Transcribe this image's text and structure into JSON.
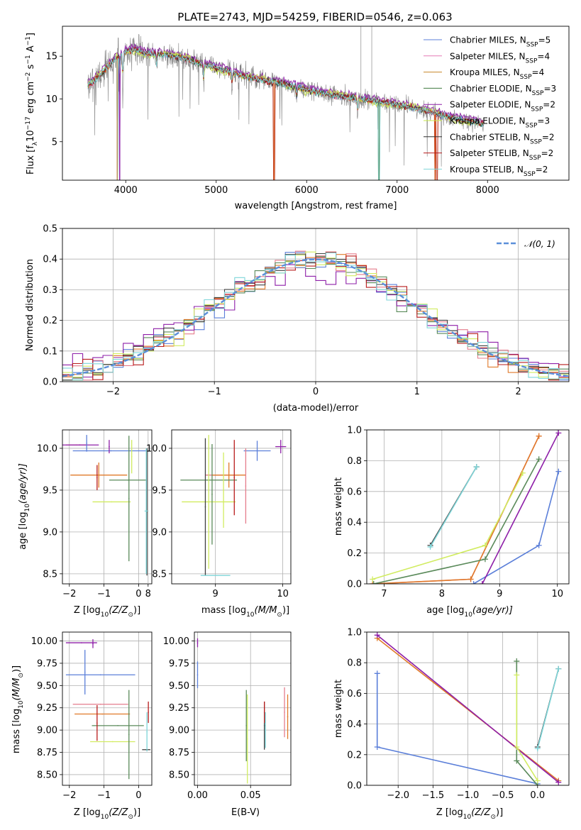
{
  "title": "PLATE=2743, MJD=54259, FIBERID=0546, z=0.063",
  "series_names": [
    "Chabrier MILES, N_SSP=5",
    "Salpeter MILES, N_SSP=4",
    "Kroupa MILES, N_SSP=4",
    "Chabrier ELODIE, N_SSP=3",
    "Salpeter ELODIE, N_SSP=2",
    "Kroupa ELODIE, N_SSP=3",
    "Chabrier STELIB, N_SSP=2",
    "Salpeter STELIB, N_SSP=2",
    "Kroupa STELIB, N_SSP=2"
  ],
  "legend_labels": [
    {
      "base": "Chabrier MILES, N",
      "sub": "SSP",
      "tail": "=5"
    },
    {
      "base": "Salpeter MILES, N",
      "sub": "SSP",
      "tail": "=4"
    },
    {
      "base": "Kroupa MILES, N",
      "sub": "SSP",
      "tail": "=4"
    },
    {
      "base": "Chabrier ELODIE, N",
      "sub": "SSP",
      "tail": "=3"
    },
    {
      "base": "Salpeter ELODIE, N",
      "sub": "SSP",
      "tail": "=2"
    },
    {
      "base": "Kroupa ELODIE, N",
      "sub": "SSP",
      "tail": "=3"
    },
    {
      "base": "Chabrier STELIB, N",
      "sub": "SSP",
      "tail": "=2"
    },
    {
      "base": "Salpeter STELIB, N",
      "sub": "SSP",
      "tail": "=2"
    },
    {
      "base": "Kroupa STELIB, N",
      "sub": "SSP",
      "tail": "=2"
    }
  ],
  "colors": [
    "#5b7fd9",
    "#e67ab5",
    "#c8872a",
    "#3f7a3f",
    "#8e1fa8",
    "#c9e84a",
    "#303030",
    "#b81c1c",
    "#7fd6d9"
  ],
  "colors_b": [
    "#5b7fd9",
    "#e57c8c",
    "#e07a2a",
    "#5a8a5a",
    "#8e1fa8",
    "#d1ec60",
    "#404040",
    "#b81c1c",
    "#7fd6d9"
  ],
  "chart_data": [
    {
      "id": "spectrum",
      "type": "line",
      "xlabel": "wavelength [Angstrom, rest frame]",
      "ylabel": {
        "a": "Flux [f",
        "b": "λ",
        "c": "10",
        "d": "−17",
        "e": " erg cm",
        "f": "−2",
        "g": " s",
        "h": "−1",
        "i": " A",
        "j": "−1",
        "k": "]"
      },
      "xlim": [
        3300,
        8900
      ],
      "ylim": [
        0.5,
        18.5
      ],
      "xticks": [
        4000,
        5000,
        6000,
        7000,
        8000
      ],
      "yticks": [
        5,
        10,
        15
      ],
      "continuum": [
        [
          3580,
          11.5
        ],
        [
          3700,
          12.6
        ],
        [
          3800,
          13.8
        ],
        [
          3900,
          14.8
        ],
        [
          4000,
          15.5
        ],
        [
          4100,
          15.8
        ],
        [
          4200,
          15.4
        ],
        [
          4400,
          15.2
        ],
        [
          4600,
          14.9
        ],
        [
          4800,
          14.2
        ],
        [
          5000,
          13.6
        ],
        [
          5200,
          13.0
        ],
        [
          5400,
          12.4
        ],
        [
          5600,
          12.0
        ],
        [
          5800,
          11.6
        ],
        [
          6000,
          11.1
        ],
        [
          6200,
          10.6
        ],
        [
          6400,
          10.3
        ],
        [
          6600,
          10.0
        ],
        [
          6800,
          9.7
        ],
        [
          7000,
          9.3
        ],
        [
          7200,
          8.9
        ],
        [
          7400,
          8.4
        ],
        [
          7600,
          7.8
        ],
        [
          7800,
          7.4
        ],
        [
          7960,
          7.0
        ]
      ],
      "dips": [
        [
          3934,
          3.6
        ],
        [
          3968,
          4.2
        ],
        [
          4340,
          2.0
        ],
        [
          4861,
          2.5
        ],
        [
          5175,
          1.8
        ],
        [
          5890,
          1.6
        ],
        [
          6563,
          2.0
        ]
      ],
      "model_drops": [
        [
          3905,
          3
        ],
        [
          3935,
          4
        ],
        [
          5640,
          2
        ],
        [
          6800,
          3
        ],
        [
          7420,
          2
        ],
        [
          7440,
          2
        ]
      ],
      "spikes": [
        [
          6720,
          18.5
        ],
        [
          6600,
          17.8
        ]
      ]
    },
    {
      "id": "residuals",
      "type": "step_histogram",
      "xlabel": "(data-model)/error",
      "ylabel": "Normed distribution",
      "xlim": [
        -2.5,
        2.5
      ],
      "ylim": [
        0,
        0.5
      ],
      "xticks": [
        -2,
        -1,
        0,
        1,
        2
      ],
      "yticks": [
        0.0,
        0.1,
        0.2,
        0.3,
        0.4,
        0.5
      ],
      "bin_width": 0.1,
      "legend": {
        "label": "𝒩(0, 1)",
        "placement": "top-right"
      },
      "normal_curve": {
        "mu": 0,
        "sigma": 1
      }
    },
    {
      "id": "age_vs_Z",
      "type": "errorbar",
      "xlabel": {
        "a": "Z [log",
        "b": "10",
        "c": "(Z/Z",
        "d": "⊙",
        "e": ")]"
      },
      "ylabel": {
        "a": "age  [log",
        "b": "10",
        "c": "(age/yr)]"
      },
      "xlim": [
        -2.2,
        0.38
      ],
      "ylim": [
        8.38,
        10.22
      ],
      "xticks": [
        -2,
        -1,
        0
      ],
      "yticks": [
        8.5,
        9.0,
        9.5,
        10.0
      ],
      "points": [
        {
          "s": 0,
          "x": -0.8,
          "y": 9.97,
          "xe": 1.1,
          "ye": 0.0
        },
        {
          "s": 1,
          "x": -1.8,
          "y": 10.04,
          "xe": 0.3,
          "ye": 0.0
        },
        {
          "s": 2,
          "x": -1.15,
          "y": 9.68,
          "xe": 0.82,
          "ye": 0.15
        },
        {
          "s": 3,
          "x": -0.3,
          "y": 9.62,
          "xe": 0.55,
          "ye": 0.0
        },
        {
          "s": 4,
          "x": -1.7,
          "y": 10.04,
          "xe": 0.55,
          "ye": 0.0
        },
        {
          "s": 5,
          "x": -0.78,
          "y": 9.36,
          "xe": 0.55,
          "ye": 0.0
        },
        {
          "s": 6,
          "x": 0.24,
          "y": 9.24,
          "xe": 0.0,
          "ye": 0.76
        },
        {
          "s": 7,
          "x": -1.2,
          "y": 9.65,
          "xe": 0.0,
          "ye": 0.15
        },
        {
          "s": 8,
          "x": 0.22,
          "y": 9.25,
          "xe": 0.05,
          "ye": 0.75
        },
        {
          "s": 3,
          "x": -0.28,
          "y": 9.4,
          "xe": 0.0,
          "ye": 0.75
        },
        {
          "s": 0,
          "x": -1.5,
          "y": 10.06,
          "xe": 0.0,
          "ye": 0.1
        },
        {
          "s": 5,
          "x": -0.2,
          "y": 9.9,
          "xe": 0.0,
          "ye": 0.2
        },
        {
          "s": 4,
          "x": -0.85,
          "y": 10.02,
          "xe": 0.0,
          "ye": 0.08
        }
      ]
    },
    {
      "id": "age_vs_mass",
      "type": "errorbar",
      "xlabel": {
        "a": "mass [log",
        "b": "10",
        "c": "(M/M",
        "d": "⊙",
        "e": ")]"
      },
      "ylabel": "",
      "xlim": [
        8.35,
        10.12
      ],
      "ylim": [
        8.38,
        10.22
      ],
      "xticks": [
        8,
        9,
        10
      ],
      "yticks": [
        8.5,
        9.0,
        9.5,
        10.0
      ],
      "points": [
        {
          "s": 0,
          "x": 9.62,
          "y": 9.97,
          "xe": 0.2,
          "ye": 0.12
        },
        {
          "s": 1,
          "x": 9.1,
          "y": 9.68,
          "xe": 0.25,
          "ye": 0.0
        },
        {
          "s": 2,
          "x": 9.2,
          "y": 9.68,
          "xe": 0.25,
          "ye": 0.15
        },
        {
          "s": 3,
          "x": 8.9,
          "y": 9.62,
          "xe": 0.42,
          "ye": 0.0
        },
        {
          "s": 4,
          "x": 9.97,
          "y": 10.02,
          "xe": 0.08,
          "ye": 0.08
        },
        {
          "s": 5,
          "x": 8.9,
          "y": 9.36,
          "xe": 0.4,
          "ye": 0.8
        },
        {
          "s": 6,
          "x": 8.85,
          "y": 9.3,
          "xe": 0.0,
          "ye": 0.82
        },
        {
          "s": 7,
          "x": 9.28,
          "y": 9.65,
          "xe": 0.0,
          "ye": 0.45
        },
        {
          "s": 8,
          "x": 9.0,
          "y": 8.48,
          "xe": 0.22,
          "ye": 0.0
        },
        {
          "s": 3,
          "x": 8.95,
          "y": 9.45,
          "xe": 0.0,
          "ye": 0.6
        },
        {
          "s": 1,
          "x": 9.45,
          "y": 9.55,
          "xe": 0.0,
          "ye": 0.45
        },
        {
          "s": 5,
          "x": 9.12,
          "y": 9.5,
          "xe": 0.0,
          "ye": 0.45
        }
      ]
    },
    {
      "id": "mass_weight_vs_age",
      "type": "line",
      "xlabel": {
        "a": "age  [log",
        "b": "10",
        "c": "(age/yr)]"
      },
      "ylabel": "mass weight",
      "xlim": [
        6.7,
        10.2
      ],
      "ylim": [
        0,
        1
      ],
      "xticks": [
        7,
        8,
        9,
        10
      ],
      "yticks": [
        0.0,
        0.2,
        0.4,
        0.6,
        0.8,
        1.0
      ],
      "series": [
        {
          "s": 0,
          "points": [
            [
              8.55,
              0.0
            ],
            [
              9.68,
              0.25
            ],
            [
              10.02,
              0.73
            ]
          ]
        },
        {
          "s": 1,
          "points": [
            [
              6.8,
              0.0
            ],
            [
              8.5,
              0.03
            ],
            [
              9.68,
              0.96
            ]
          ]
        },
        {
          "s": 2,
          "points": [
            [
              6.8,
              0.0
            ],
            [
              8.5,
              0.03
            ],
            [
              9.68,
              0.96
            ]
          ]
        },
        {
          "s": 3,
          "points": [
            [
              6.82,
              0.0
            ],
            [
              8.75,
              0.16
            ],
            [
              9.68,
              0.81
            ]
          ]
        },
        {
          "s": 4,
          "points": [
            [
              8.7,
              0.0
            ],
            [
              10.02,
              0.98
            ]
          ]
        },
        {
          "s": 5,
          "points": [
            [
              6.8,
              0.03
            ],
            [
              8.75,
              0.25
            ],
            [
              9.4,
              0.72
            ]
          ]
        },
        {
          "s": 6,
          "points": [
            [
              7.8,
              0.25
            ],
            [
              8.6,
              0.76
            ]
          ]
        },
        {
          "s": 8,
          "points": [
            [
              7.8,
              0.24
            ],
            [
              8.6,
              0.76
            ]
          ]
        }
      ]
    },
    {
      "id": "mass_vs_Z",
      "type": "errorbar",
      "xlabel": {
        "a": "Z [log",
        "b": "10",
        "c": "(Z/Z",
        "d": "⊙",
        "e": ")]"
      },
      "ylabel": {
        "a": "mass [log",
        "b": "10",
        "c": "(M/M",
        "d": "⊙",
        "e": ")]"
      },
      "xlim": [
        -2.2,
        0.38
      ],
      "ylim": [
        8.38,
        10.1
      ],
      "xticks": [
        -2,
        -1,
        0
      ],
      "yticks": [
        8.5,
        8.75,
        9.0,
        9.25,
        9.5,
        9.75,
        10.0
      ],
      "points": [
        {
          "s": 0,
          "x": -1.1,
          "y": 9.62,
          "xe": 1.0,
          "ye": 0.0
        },
        {
          "s": 1,
          "x": -1.1,
          "y": 9.29,
          "xe": 0.8,
          "ye": 0.0
        },
        {
          "s": 2,
          "x": -1.05,
          "y": 9.18,
          "xe": 0.8,
          "ye": 0.0
        },
        {
          "s": 3,
          "x": -0.6,
          "y": 9.05,
          "xe": 0.75,
          "ye": 0.0
        },
        {
          "s": 4,
          "x": -1.65,
          "y": 9.98,
          "xe": 0.45,
          "ye": 0.0
        },
        {
          "s": 5,
          "x": -0.75,
          "y": 8.87,
          "xe": 0.65,
          "ye": 0.0
        },
        {
          "s": 6,
          "x": 0.22,
          "y": 8.78,
          "xe": 0.12,
          "ye": 0.0
        },
        {
          "s": 7,
          "x": -1.2,
          "y": 9.08,
          "xe": 0.0,
          "ye": 0.2
        },
        {
          "s": 0,
          "x": -1.55,
          "y": 9.65,
          "xe": 0.0,
          "ye": 0.25
        },
        {
          "s": 3,
          "x": -0.28,
          "y": 8.95,
          "xe": 0.0,
          "ye": 0.5
        },
        {
          "s": 8,
          "x": 0.24,
          "y": 8.98,
          "xe": 0.0,
          "ye": 0.22
        },
        {
          "s": 7,
          "x": 0.28,
          "y": 9.2,
          "xe": 0.0,
          "ye": 0.12
        },
        {
          "s": 4,
          "x": -1.32,
          "y": 9.97,
          "xe": 0.0,
          "ye": 0.05
        }
      ]
    },
    {
      "id": "mass_vs_EBV",
      "type": "errorbar",
      "xlabel": "E(B-V)",
      "ylabel": "",
      "xlim": [
        -0.003,
        0.088
      ],
      "ylim": [
        8.38,
        10.1
      ],
      "xticks": [
        0.0,
        0.05
      ],
      "ytick_labels": [
        "8.50",
        "8.75",
        "9.00",
        "9.25",
        "9.50",
        "9.75",
        "10.00"
      ],
      "yticks": [
        8.5,
        8.75,
        9.0,
        9.25,
        9.5,
        9.75,
        10.0
      ],
      "points": [
        {
          "s": 0,
          "x": 0.0,
          "y": 9.62,
          "xe": 0.0,
          "ye": 0.15
        },
        {
          "s": 1,
          "x": 0.082,
          "y": 9.2,
          "xe": 0.0,
          "ye": 0.28
        },
        {
          "s": 2,
          "x": 0.085,
          "y": 9.15,
          "xe": 0.0,
          "ye": 0.25
        },
        {
          "s": 3,
          "x": 0.046,
          "y": 9.05,
          "xe": 0.0,
          "ye": 0.4
        },
        {
          "s": 4,
          "x": 0.0,
          "y": 9.98,
          "xe": 0.0,
          "ye": 0.05
        },
        {
          "s": 5,
          "x": 0.047,
          "y": 8.9,
          "xe": 0.0,
          "ye": 0.5
        },
        {
          "s": 6,
          "x": 0.063,
          "y": 9.05,
          "xe": 0.0,
          "ye": 0.27
        },
        {
          "s": 7,
          "x": 0.063,
          "y": 9.2,
          "xe": 0.0,
          "ye": 0.12
        },
        {
          "s": 8,
          "x": 0.064,
          "y": 9.0,
          "xe": 0.0,
          "ye": 0.2
        }
      ]
    },
    {
      "id": "mass_weight_vs_Z",
      "type": "line",
      "xlabel": {
        "a": "Z [log",
        "b": "10",
        "c": "(Z/Z",
        "d": "⊙",
        "e": ")]"
      },
      "ylabel": "mass weight",
      "xlim": [
        -2.45,
        0.45
      ],
      "ylim": [
        0,
        1
      ],
      "xticks": [
        -2.0,
        -1.5,
        -1.0,
        -0.5,
        0.0
      ],
      "ytick_labels": [
        "0.0",
        "0.2",
        "0.4",
        "0.6",
        "0.8",
        "1.0"
      ],
      "yticks": [
        0.0,
        0.2,
        0.4,
        0.6,
        0.8,
        1.0
      ],
      "series": [
        {
          "s": 0,
          "points": [
            [
              -2.3,
              0.73
            ],
            [
              -2.3,
              0.25
            ],
            [
              0.0,
              0.01
            ]
          ]
        },
        {
          "s": 2,
          "points": [
            [
              -2.3,
              0.96
            ],
            [
              0.3,
              0.03
            ]
          ]
        },
        {
          "s": 4,
          "points": [
            [
              -2.3,
              0.98
            ],
            [
              0.3,
              0.02
            ]
          ]
        },
        {
          "s": 3,
          "points": [
            [
              -0.3,
              0.81
            ],
            [
              -0.3,
              0.16
            ],
            [
              0.0,
              0.0
            ]
          ]
        },
        {
          "s": 5,
          "points": [
            [
              -0.3,
              0.72
            ],
            [
              -0.3,
              0.25
            ],
            [
              0.0,
              0.03
            ]
          ]
        },
        {
          "s": 6,
          "points": [
            [
              0.0,
              0.25
            ],
            [
              0.3,
              0.76
            ]
          ]
        },
        {
          "s": 8,
          "points": [
            [
              0.0,
              0.24
            ],
            [
              0.3,
              0.76
            ]
          ]
        }
      ]
    }
  ]
}
